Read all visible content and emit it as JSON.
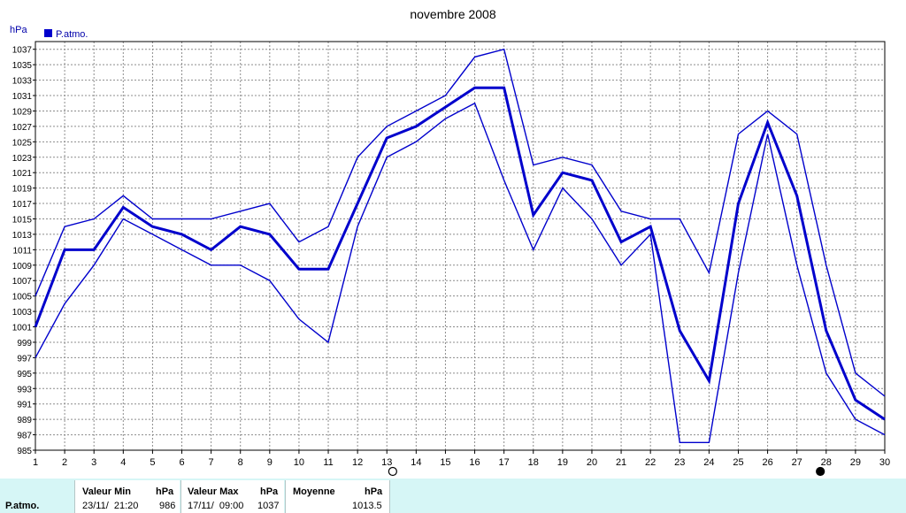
{
  "chart_data": {
    "type": "line",
    "title": "novembre 2008",
    "ylabel": "hPa",
    "legend": [
      {
        "name": "P.atmo.",
        "color": "#0000cc"
      }
    ],
    "x": [
      1,
      2,
      3,
      4,
      5,
      6,
      7,
      8,
      9,
      10,
      11,
      12,
      13,
      14,
      15,
      16,
      17,
      18,
      19,
      20,
      21,
      22,
      23,
      24,
      25,
      26,
      27,
      28,
      29,
      30
    ],
    "xlim": [
      1,
      30
    ],
    "ylim": [
      985,
      1038
    ],
    "yticks": [
      985,
      987,
      989,
      991,
      993,
      995,
      997,
      999,
      1001,
      1003,
      1005,
      1007,
      1009,
      1011,
      1013,
      1015,
      1017,
      1019,
      1021,
      1023,
      1025,
      1027,
      1029,
      1031,
      1033,
      1035,
      1037
    ],
    "grid": true,
    "series": [
      {
        "role": "max",
        "values": [
          1005,
          1014,
          1015,
          1018,
          1015,
          1015,
          1015,
          1016,
          1017,
          1012,
          1014,
          1023,
          1027,
          1029,
          1031,
          1036,
          1037,
          1022,
          1023,
          1022,
          1016,
          1015,
          1015,
          1008,
          1026,
          1029,
          1026,
          1009,
          995,
          992
        ]
      },
      {
        "role": "mean",
        "values": [
          1001,
          1011,
          1011,
          1016.5,
          1014,
          1013,
          1011,
          1014,
          1013,
          1008.5,
          1008.5,
          1017,
          1025.5,
          1027,
          1029.5,
          1032,
          1032,
          1015.5,
          1021,
          1020,
          1012,
          1014,
          1000.5,
          994,
          1017,
          1027.5,
          1018,
          1000.5,
          991.5,
          989
        ]
      },
      {
        "role": "min",
        "values": [
          997,
          1004,
          1009,
          1015,
          1013,
          1011,
          1009,
          1009,
          1007,
          1002,
          999,
          1014,
          1023,
          1025,
          1028,
          1030,
          1020,
          1011,
          1019,
          1015,
          1009,
          1013,
          986,
          986,
          1008,
          1026,
          1009,
          995,
          989,
          987
        ]
      }
    ],
    "line_color": "#0000cc",
    "moon_markers": [
      {
        "x": 13.2,
        "phase": "full"
      },
      {
        "x": 27.8,
        "phase": "new"
      }
    ]
  },
  "stats": {
    "row_label": "P.atmo.",
    "min_header": "Valeur Min",
    "min_unit": "hPa",
    "min_date": "23/11/  21:20",
    "min_value": "986",
    "max_header": "Valeur Max",
    "max_unit": "hPa",
    "max_date": "17/11/  09:00",
    "max_value": "1037",
    "mean_header": "Moyenne",
    "mean_unit": "hPa",
    "mean_value": "1013.5"
  }
}
